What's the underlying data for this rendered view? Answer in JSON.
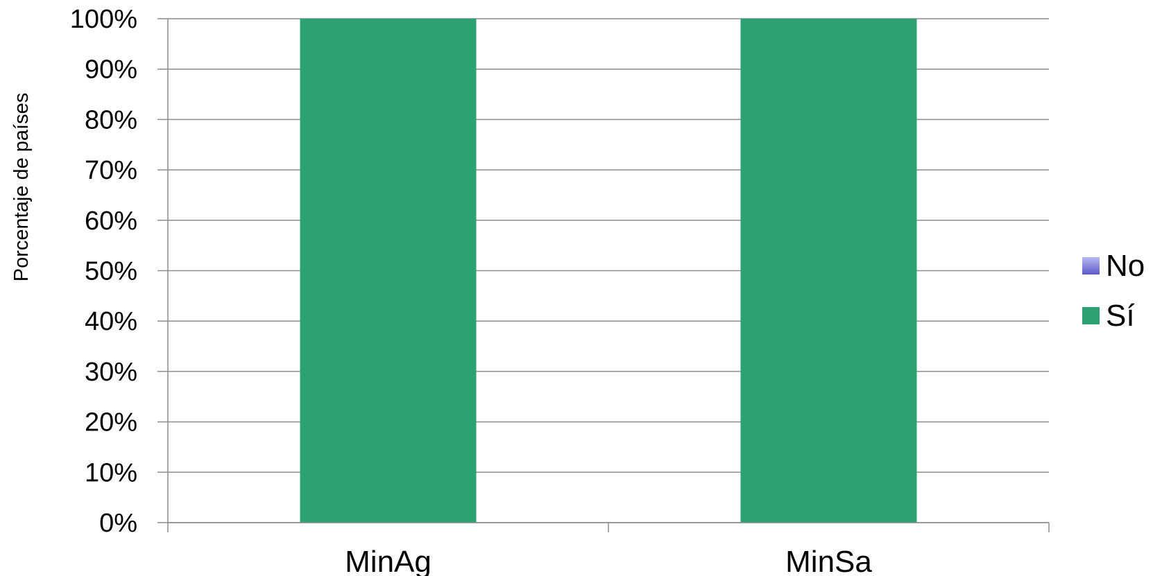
{
  "chart_data": {
    "type": "bar",
    "stacked": true,
    "categories": [
      "MinAg",
      "MinSa"
    ],
    "series": [
      {
        "name": "Sí",
        "values": [
          1.0,
          1.0
        ],
        "color": "#2ca273"
      },
      {
        "name": "No",
        "values": [
          0.0,
          0.0
        ],
        "color": "#5a5ac8"
      }
    ],
    "ylabel": "Porcentaje de países",
    "xlabel": "",
    "ylim": [
      0,
      1
    ],
    "y_ticks": [
      "0%",
      "10%",
      "20%",
      "30%",
      "40%",
      "50%",
      "60%",
      "70%",
      "80%",
      "90%",
      "100%"
    ],
    "grid": true,
    "legend": {
      "position": "right",
      "items": [
        "No",
        "Sí"
      ]
    }
  }
}
